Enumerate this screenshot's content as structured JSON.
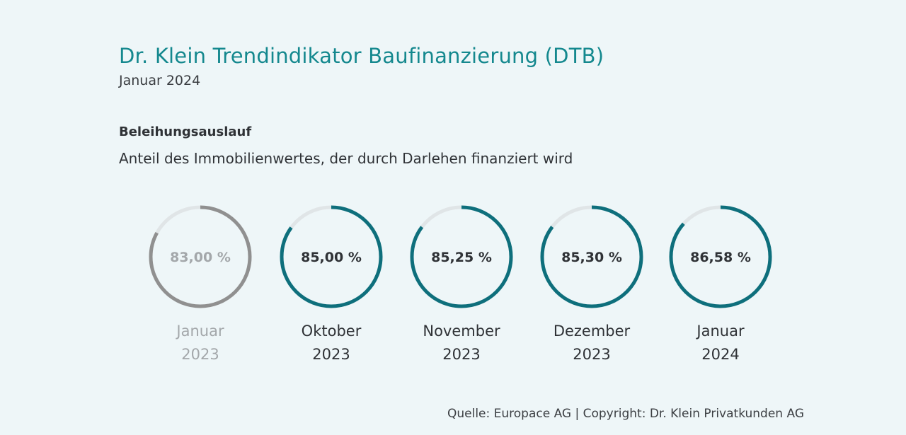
{
  "header": {
    "title": "Dr. Klein Trendindikator Baufinanzierung (DTB)",
    "subtitle": "Januar 2024"
  },
  "section": {
    "heading": "Beleihungsauslauf",
    "description": "Anteil des Immobilienwertes, der durch Darlehen finanziert wird"
  },
  "footer": {
    "source": "Quelle: Europace AG | Copyright: Dr. Klein Privatkunden AG"
  },
  "colors": {
    "accent": "#0e6f7c",
    "muted_ring": "#909090",
    "track": "#e0e5e7",
    "muted_text": "#a3a7aa",
    "title": "#14888e"
  },
  "chart_data": {
    "type": "donut",
    "unit": "%",
    "items": [
      {
        "value_label": "83,00 %",
        "value": 83.0,
        "period_line1": "Januar",
        "period_line2": "2023",
        "muted": true
      },
      {
        "value_label": "85,00 %",
        "value": 85.0,
        "period_line1": "Oktober",
        "period_line2": "2023",
        "muted": false
      },
      {
        "value_label": "85,25 %",
        "value": 85.25,
        "period_line1": "November",
        "period_line2": "2023",
        "muted": false
      },
      {
        "value_label": "85,30 %",
        "value": 85.3,
        "period_line1": "Dezember",
        "period_line2": "2023",
        "muted": false
      },
      {
        "value_label": "86,58 %",
        "value": 86.58,
        "period_line1": "Januar",
        "period_line2": "2024",
        "muted": false
      }
    ]
  }
}
